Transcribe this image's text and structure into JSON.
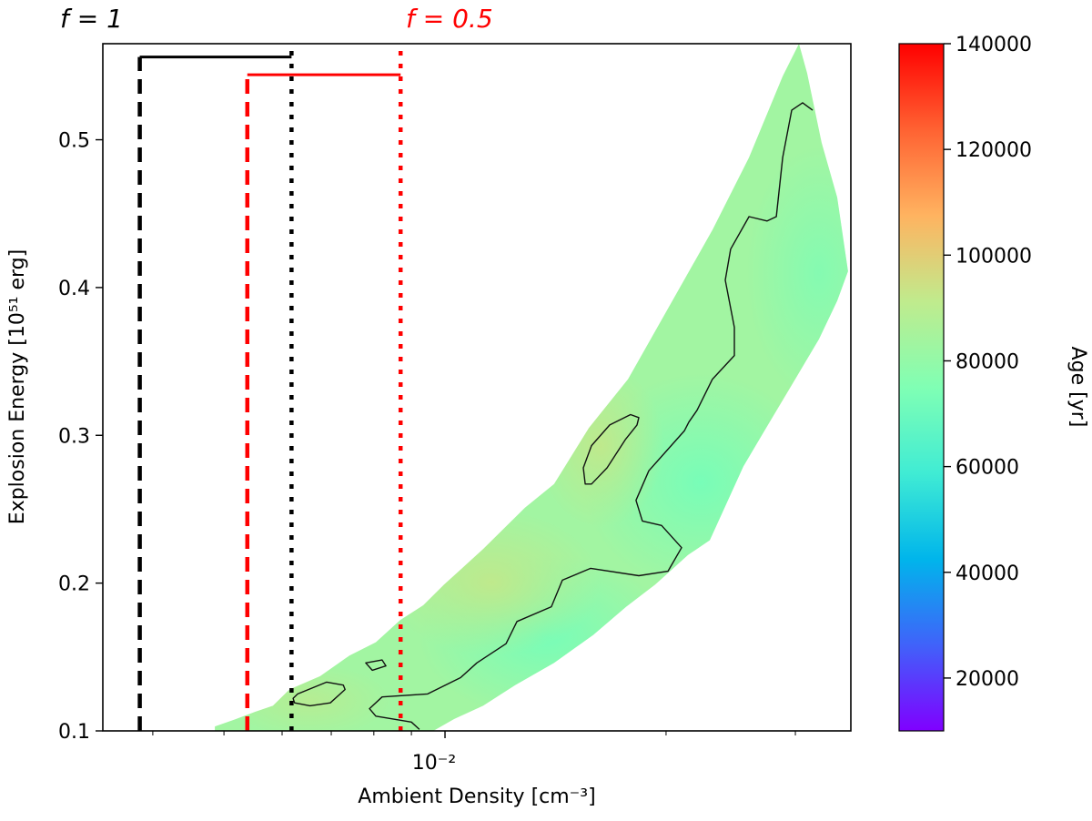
{
  "chart_data": {
    "type": "heatmap",
    "title_left": "f = 1",
    "title_right": "f = 0.5",
    "xlabel": "Ambient Density [cm⁻³]",
    "ylabel": "Explosion Energy [10⁵¹ erg]",
    "xscale": "log",
    "xlim": [
      0.00342,
      0.0357
    ],
    "ylim": [
      0.1,
      0.565
    ],
    "xticks_major": [
      {
        "value": 0.01,
        "label": "10⁻²"
      }
    ],
    "xticks_minor": [
      0.004,
      0.005,
      0.006,
      0.007,
      0.008,
      0.009,
      0.02,
      0.03
    ],
    "yticks": [
      {
        "value": 0.1,
        "label": "0.1"
      },
      {
        "value": 0.2,
        "label": "0.2"
      },
      {
        "value": 0.3,
        "label": "0.3"
      },
      {
        "value": 0.4,
        "label": "0.4"
      },
      {
        "value": 0.5,
        "label": "0.5"
      }
    ],
    "grid": false,
    "colorbar": {
      "label": "Age [yr]",
      "cmap": "rainbow",
      "range": [
        10000,
        140000
      ],
      "ticks": [
        {
          "value": 20000,
          "label": "20000"
        },
        {
          "value": 40000,
          "label": "40000"
        },
        {
          "value": 60000,
          "label": "60000"
        },
        {
          "value": 80000,
          "label": "80000"
        },
        {
          "value": 100000,
          "label": "100000"
        },
        {
          "value": 120000,
          "label": "120000"
        },
        {
          "value": 140000,
          "label": "140000"
        }
      ]
    },
    "filled_region_envelope": [
      [
        0.00486,
        0.1
      ],
      [
        0.00486,
        0.103
      ],
      [
        0.00519,
        0.108
      ],
      [
        0.00552,
        0.113
      ],
      [
        0.00583,
        0.117
      ],
      [
        0.00614,
        0.128
      ],
      [
        0.00676,
        0.137
      ],
      [
        0.00741,
        0.151
      ],
      [
        0.00805,
        0.16
      ],
      [
        0.00869,
        0.175
      ],
      [
        0.00934,
        0.185
      ],
      [
        0.00997,
        0.199
      ],
      [
        0.01127,
        0.223
      ],
      [
        0.01285,
        0.251
      ],
      [
        0.01408,
        0.267
      ],
      [
        0.0157,
        0.305
      ],
      [
        0.01775,
        0.338
      ],
      [
        0.02029,
        0.389
      ],
      [
        0.02313,
        0.439
      ],
      [
        0.02594,
        0.488
      ],
      [
        0.02883,
        0.543
      ],
      [
        0.03034,
        0.565
      ],
      [
        0.03113,
        0.545
      ],
      [
        0.03258,
        0.498
      ],
      [
        0.0342,
        0.461
      ],
      [
        0.03539,
        0.411
      ],
      [
        0.0342,
        0.391
      ],
      [
        0.0323,
        0.365
      ],
      [
        0.02966,
        0.334
      ],
      [
        0.02722,
        0.303
      ],
      [
        0.02549,
        0.279
      ],
      [
        0.02294,
        0.229
      ],
      [
        0.02142,
        0.219
      ],
      [
        0.01933,
        0.199
      ],
      [
        0.01765,
        0.184
      ],
      [
        0.01592,
        0.165
      ],
      [
        0.01408,
        0.146
      ],
      [
        0.01246,
        0.131
      ],
      [
        0.01127,
        0.117
      ],
      [
        0.01029,
        0.108
      ],
      [
        0.00964,
        0.1
      ]
    ],
    "typical_age_in_region": 80000,
    "contours": [
      {
        "closed": false,
        "points": [
          [
            0.00923,
            0.101
          ],
          [
            0.009,
            0.106
          ],
          [
            0.00805,
            0.11
          ],
          [
            0.00789,
            0.115
          ],
          [
            0.00821,
            0.123
          ],
          [
            0.00947,
            0.125
          ],
          [
            0.0105,
            0.136
          ],
          [
            0.01105,
            0.146
          ],
          [
            0.01211,
            0.159
          ],
          [
            0.01253,
            0.174
          ],
          [
            0.01396,
            0.184
          ],
          [
            0.01445,
            0.202
          ],
          [
            0.01579,
            0.21
          ],
          [
            0.01836,
            0.205
          ],
          [
            0.02012,
            0.208
          ],
          [
            0.021,
            0.224
          ],
          [
            0.01972,
            0.239
          ],
          [
            0.01857,
            0.242
          ],
          [
            0.0182,
            0.256
          ],
          [
            0.01895,
            0.276
          ],
          [
            0.02118,
            0.303
          ],
          [
            0.02148,
            0.309
          ],
          [
            0.02204,
            0.317
          ],
          [
            0.02313,
            0.338
          ],
          [
            0.02478,
            0.354
          ],
          [
            0.02478,
            0.373
          ],
          [
            0.02408,
            0.405
          ],
          [
            0.02449,
            0.426
          ],
          [
            0.02594,
            0.448
          ],
          [
            0.02746,
            0.445
          ],
          [
            0.02826,
            0.448
          ],
          [
            0.02883,
            0.488
          ],
          [
            0.02966,
            0.52
          ],
          [
            0.03069,
            0.525
          ],
          [
            0.03167,
            0.52
          ]
        ]
      },
      {
        "closed": true,
        "points": [
          [
            0.01836,
            0.312
          ],
          [
            0.01789,
            0.314
          ],
          [
            0.01676,
            0.307
          ],
          [
            0.01583,
            0.293
          ],
          [
            0.01543,
            0.278
          ],
          [
            0.01552,
            0.267
          ],
          [
            0.01583,
            0.267
          ],
          [
            0.01662,
            0.278
          ],
          [
            0.0176,
            0.297
          ],
          [
            0.01826,
            0.307
          ]
        ]
      },
      {
        "closed": true,
        "points": [
          [
            0.0063,
            0.125
          ],
          [
            0.0069,
            0.133
          ],
          [
            0.00727,
            0.131
          ],
          [
            0.00731,
            0.128
          ],
          [
            0.00698,
            0.119
          ],
          [
            0.00655,
            0.117
          ],
          [
            0.00624,
            0.119
          ],
          [
            0.00621,
            0.122
          ]
        ]
      },
      {
        "closed": true,
        "points": [
          [
            0.0078,
            0.146
          ],
          [
            0.00821,
            0.148
          ],
          [
            0.00831,
            0.144
          ],
          [
            0.00796,
            0.141
          ]
        ]
      }
    ],
    "markers": [
      {
        "name": "f = 1 lower",
        "color": "#000000",
        "style": "dashed",
        "x": 0.00384,
        "ytop": 0.556
      },
      {
        "name": "f = 1 upper",
        "color": "#000000",
        "style": "dotted",
        "x": 0.00618,
        "ytop": 0.563
      },
      {
        "name": "f = 0.5 lower",
        "color": "#ff0000",
        "style": "dashed",
        "x": 0.00538,
        "ytop": 0.544
      },
      {
        "name": "f = 0.5 upper",
        "color": "#ff0000",
        "style": "dotted",
        "x": 0.0087,
        "ytop": 0.563
      }
    ],
    "ranges": [
      {
        "color": "#000000",
        "x": [
          0.00384,
          0.00618
        ],
        "y": 0.556
      },
      {
        "color": "#ff0000",
        "x": [
          0.00538,
          0.0087
        ],
        "y": 0.544
      }
    ]
  }
}
